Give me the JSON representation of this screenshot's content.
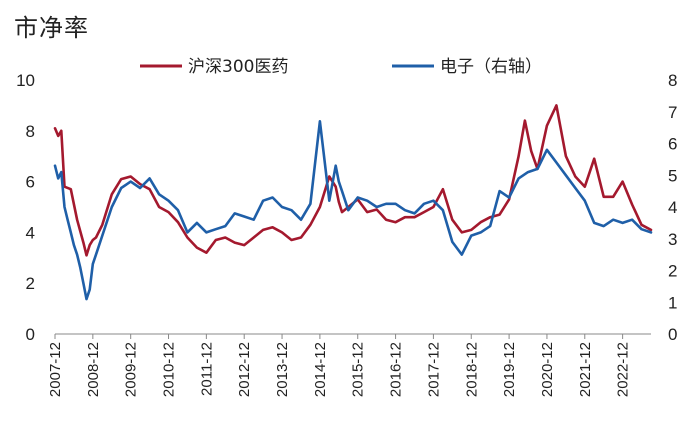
{
  "chart_data": {
    "type": "line",
    "title": "市净率",
    "xlabel": "",
    "ylabel": "",
    "x_ticks": [
      "2007-12",
      "2008-12",
      "2009-12",
      "2010-12",
      "2011-12",
      "2012-12",
      "2013-12",
      "2014-12",
      "2015-12",
      "2016-12",
      "2017-12",
      "2018-12",
      "2019-12",
      "2020-12",
      "2021-12",
      "2022-12"
    ],
    "x_range": [
      "2007-12",
      "2023-09"
    ],
    "ylim_left": [
      0,
      10
    ],
    "yticks_left": [
      0,
      2,
      4,
      6,
      8,
      10
    ],
    "ylim_right": [
      0,
      8
    ],
    "yticks_right": [
      0,
      1,
      2,
      3,
      4,
      5,
      6,
      7,
      8
    ],
    "grid": false,
    "legend_position": "top",
    "series": [
      {
        "name": "沪深300医药",
        "axis": "left",
        "color": "#a4192e",
        "x": [
          "2007-12",
          "2008-01",
          "2008-02",
          "2008-03",
          "2008-05",
          "2008-07",
          "2008-09",
          "2008-10",
          "2008-11",
          "2008-12",
          "2009-01",
          "2009-03",
          "2009-06",
          "2009-09",
          "2009-12",
          "2010-03",
          "2010-06",
          "2010-09",
          "2010-12",
          "2011-03",
          "2011-06",
          "2011-09",
          "2011-12",
          "2012-03",
          "2012-06",
          "2012-09",
          "2012-12",
          "2013-03",
          "2013-06",
          "2013-09",
          "2013-12",
          "2014-03",
          "2014-06",
          "2014-09",
          "2014-12",
          "2015-03",
          "2015-05",
          "2015-06",
          "2015-07",
          "2015-09",
          "2015-12",
          "2016-03",
          "2016-06",
          "2016-09",
          "2016-12",
          "2017-03",
          "2017-06",
          "2017-09",
          "2017-12",
          "2018-03",
          "2018-06",
          "2018-09",
          "2018-12",
          "2019-03",
          "2019-06",
          "2019-09",
          "2019-12",
          "2020-03",
          "2020-05",
          "2020-07",
          "2020-09",
          "2020-12",
          "2021-03",
          "2021-06",
          "2021-09",
          "2021-12",
          "2022-03",
          "2022-06",
          "2022-09",
          "2022-12",
          "2023-03",
          "2023-06",
          "2023-09"
        ],
        "values": [
          8.1,
          7.8,
          8.0,
          5.8,
          5.7,
          4.5,
          3.6,
          3.1,
          3.5,
          3.7,
          3.8,
          4.3,
          5.5,
          6.1,
          6.2,
          5.9,
          5.7,
          5.0,
          4.8,
          4.4,
          3.8,
          3.4,
          3.2,
          3.7,
          3.8,
          3.6,
          3.5,
          3.8,
          4.1,
          4.2,
          4.0,
          3.7,
          3.8,
          4.3,
          5.0,
          6.2,
          5.8,
          5.2,
          4.8,
          5.0,
          5.3,
          4.8,
          4.9,
          4.5,
          4.4,
          4.6,
          4.6,
          4.8,
          5.0,
          5.7,
          4.5,
          4.0,
          4.1,
          4.4,
          4.6,
          4.7,
          5.3,
          7.0,
          8.4,
          7.2,
          6.5,
          8.2,
          9.0,
          7.0,
          6.2,
          5.8,
          6.9,
          5.4,
          5.4,
          6.0,
          5.1,
          4.3,
          4.1
        ]
      },
      {
        "name": "电子（右轴）",
        "axis": "right",
        "color": "#1f5fa8",
        "x": [
          "2007-12",
          "2008-01",
          "2008-02",
          "2008-03",
          "2008-04",
          "2008-05",
          "2008-06",
          "2008-07",
          "2008-08",
          "2008-09",
          "2008-10",
          "2008-11",
          "2008-12",
          "2009-01",
          "2009-03",
          "2009-06",
          "2009-09",
          "2009-12",
          "2010-03",
          "2010-06",
          "2010-09",
          "2010-12",
          "2011-03",
          "2011-06",
          "2011-09",
          "2011-12",
          "2012-03",
          "2012-06",
          "2012-09",
          "2012-12",
          "2013-03",
          "2013-06",
          "2013-09",
          "2013-12",
          "2014-03",
          "2014-06",
          "2014-09",
          "2014-12",
          "2015-03",
          "2015-05",
          "2015-06",
          "2015-07",
          "2015-09",
          "2015-12",
          "2016-03",
          "2016-06",
          "2016-09",
          "2016-12",
          "2017-03",
          "2017-06",
          "2017-09",
          "2017-12",
          "2018-03",
          "2018-06",
          "2018-09",
          "2018-12",
          "2019-03",
          "2019-06",
          "2019-09",
          "2019-12",
          "2020-03",
          "2020-06",
          "2020-09",
          "2020-12",
          "2021-03",
          "2021-06",
          "2021-09",
          "2021-12",
          "2022-03",
          "2022-06",
          "2022-09",
          "2022-12",
          "2023-03",
          "2023-06",
          "2023-09"
        ],
        "values": [
          5.3,
          4.9,
          5.1,
          4.0,
          3.6,
          3.2,
          2.8,
          2.5,
          2.1,
          1.6,
          1.1,
          1.4,
          2.2,
          2.5,
          3.1,
          4.0,
          4.6,
          4.8,
          4.6,
          4.9,
          4.4,
          4.2,
          3.9,
          3.2,
          3.5,
          3.2,
          3.3,
          3.4,
          3.8,
          3.7,
          3.6,
          4.2,
          4.3,
          4.0,
          3.9,
          3.6,
          4.1,
          6.7,
          4.2,
          5.3,
          4.8,
          4.5,
          3.9,
          4.3,
          4.2,
          4.0,
          4.1,
          4.1,
          3.9,
          3.8,
          4.1,
          4.2,
          3.9,
          2.9,
          2.5,
          3.1,
          3.2,
          3.4,
          4.5,
          4.3,
          4.9,
          5.1,
          5.2,
          5.8,
          5.4,
          5.0,
          4.6,
          4.2,
          3.5,
          3.4,
          3.6,
          3.5,
          3.6,
          3.3,
          3.2
        ]
      }
    ]
  }
}
